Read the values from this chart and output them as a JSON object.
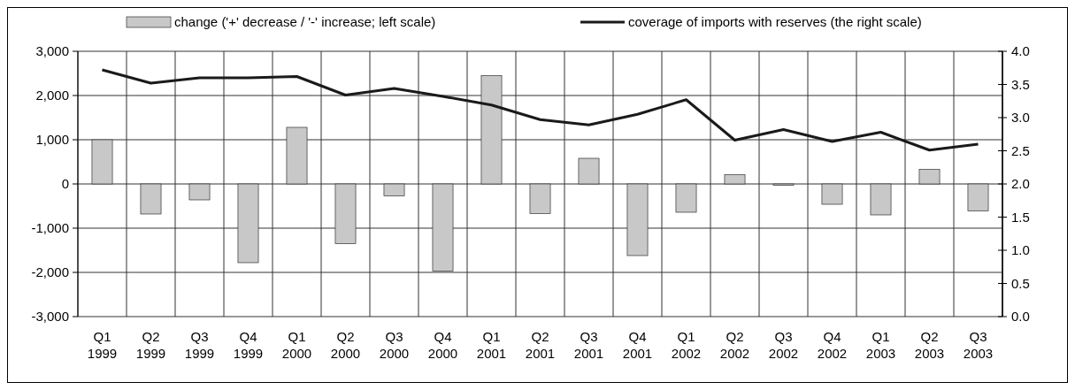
{
  "chart_data": {
    "type": "bar",
    "categories": [
      "Q1 1999",
      "Q2 1999",
      "Q3 1999",
      "Q4 1999",
      "Q1 2000",
      "Q2 2000",
      "Q3 2000",
      "Q4 2000",
      "Q1 2001",
      "Q2 2001",
      "Q3 2001",
      "Q4 2001",
      "Q1 2002",
      "Q2 2002",
      "Q3 2002",
      "Q4 2002",
      "Q1 2003",
      "Q2 2003",
      "Q3 2003"
    ],
    "series": [
      {
        "name": "change ('+' decrease / '-' increase; left scale)",
        "color": "#c8c8c8",
        "values": [
          1000,
          -680,
          -360,
          -1780,
          1280,
          -1350,
          -270,
          -1970,
          2450,
          -670,
          580,
          -1620,
          -640,
          210,
          -30,
          -460,
          -700,
          330,
          -610
        ]
      },
      {
        "name": "coverage of imports with reserves (the right scale)",
        "type": "line",
        "axis": "y2",
        "color": "#1a1a1a",
        "values": [
          3.72,
          3.52,
          3.6,
          3.6,
          3.62,
          3.34,
          3.44,
          3.32,
          3.19,
          2.97,
          2.89,
          3.05,
          3.27,
          2.66,
          2.82,
          2.64,
          2.78,
          2.51,
          2.6
        ]
      }
    ],
    "ylim": [
      -3000,
      3000
    ],
    "yticks": [
      {
        "value": -3000,
        "label": "-3,000"
      },
      {
        "value": -2000,
        "label": "-2,000"
      },
      {
        "value": -1000,
        "label": "-1,000"
      },
      0,
      {
        "value": 1000,
        "label": "1,000"
      },
      {
        "value": 2000,
        "label": "2,000"
      },
      {
        "value": 3000,
        "label": "3,000"
      }
    ],
    "y2lim": [
      0,
      4
    ],
    "y2ticks": [
      {
        "value": 0,
        "label": "0.0"
      },
      {
        "value": 0.5,
        "label": "0.5"
      },
      {
        "value": 1,
        "label": "1.0"
      },
      {
        "value": 1.5,
        "label": "1.5"
      },
      {
        "value": 2,
        "label": "2.0"
      },
      {
        "value": 2.5,
        "label": "2.5"
      },
      {
        "value": 3,
        "label": "3.0"
      },
      {
        "value": 3.5,
        "label": "3.5"
      },
      {
        "value": 4,
        "label": "4.0"
      }
    ],
    "grid": true,
    "legend": "top",
    "marker": "none"
  }
}
